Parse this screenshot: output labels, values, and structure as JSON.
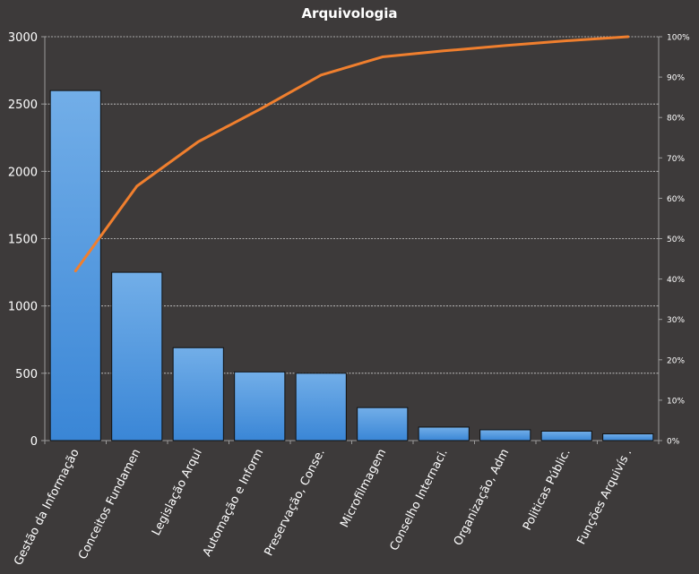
{
  "chart_data": {
    "type": "bar",
    "title": "Arquivologia",
    "categories": [
      "Gestão da Informação",
      "Conceitos Fundamen",
      "Legislação Arqui",
      "Automação e Inform",
      "Preservação, Conse.",
      "Microfilmagem",
      "Conselho Internaci.",
      "Organização, Adm",
      "Politicas Públic.",
      "Funções Arquivís ."
    ],
    "series": [
      {
        "kind": "bar",
        "axis": "primary",
        "color": "#4a90d9",
        "values": [
          2600,
          1250,
          690,
          510,
          500,
          245,
          100,
          80,
          70,
          50
        ]
      },
      {
        "kind": "line",
        "axis": "secondary",
        "color": "#f07f2e",
        "values": [
          42,
          63,
          74,
          82,
          90.5,
          95,
          96.5,
          97.8,
          99,
          100
        ]
      }
    ],
    "y_axis": {
      "min": 0,
      "max": 3000,
      "ticks": [
        "0",
        "500",
        "1000",
        "1500",
        "2000",
        "2500",
        "3000"
      ]
    },
    "y2_axis": {
      "min": 0,
      "max": 100,
      "ticks": [
        "0%",
        "10%",
        "20%",
        "30%",
        "40%",
        "50%",
        "60%",
        "70%",
        "80%",
        "90%",
        "100%"
      ]
    },
    "grid": true,
    "legend": "none"
  }
}
